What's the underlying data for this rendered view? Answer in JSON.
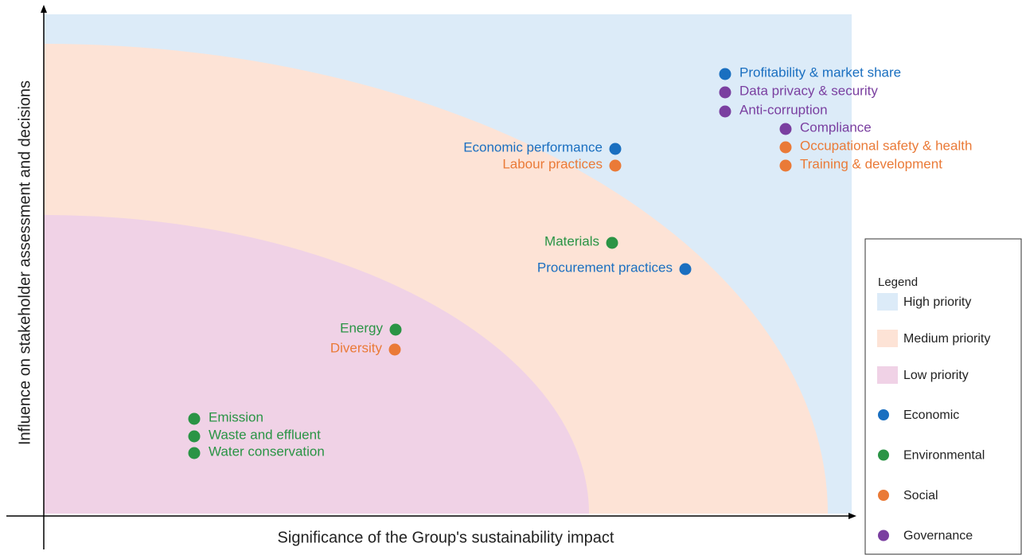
{
  "axis_labels": {
    "x": "Significance of the Group's sustainability impact",
    "y": "Influence on stakeholder assessment and decisions"
  },
  "legend_title": "Legend",
  "zones": [
    {
      "label": "High priority",
      "color": "#dcebf8"
    },
    {
      "label": "Medium priority",
      "color": "#fde3d6"
    },
    {
      "label": "Low priority",
      "color": "#f0d2e6"
    }
  ],
  "categories": [
    {
      "label": "Economic",
      "color": "#1a6fc0",
      "points": [
        "Profitability & market share",
        "Economic performance",
        "Procurement practices"
      ]
    },
    {
      "label": "Environmental",
      "color": "#2a9445",
      "points": [
        "Materials",
        "Energy",
        "Emission",
        "Waste and effluent",
        "Water conservation"
      ]
    },
    {
      "label": "Social",
      "color": "#ea7a37",
      "points": [
        "Occupational safety & health",
        "Training & development",
        "Labour practices",
        "Diversity"
      ]
    },
    {
      "label": "Governance",
      "color": "#7a3fa0",
      "points": [
        "Data privacy & security",
        "Anti-corruption",
        "Compliance"
      ]
    }
  ]
}
